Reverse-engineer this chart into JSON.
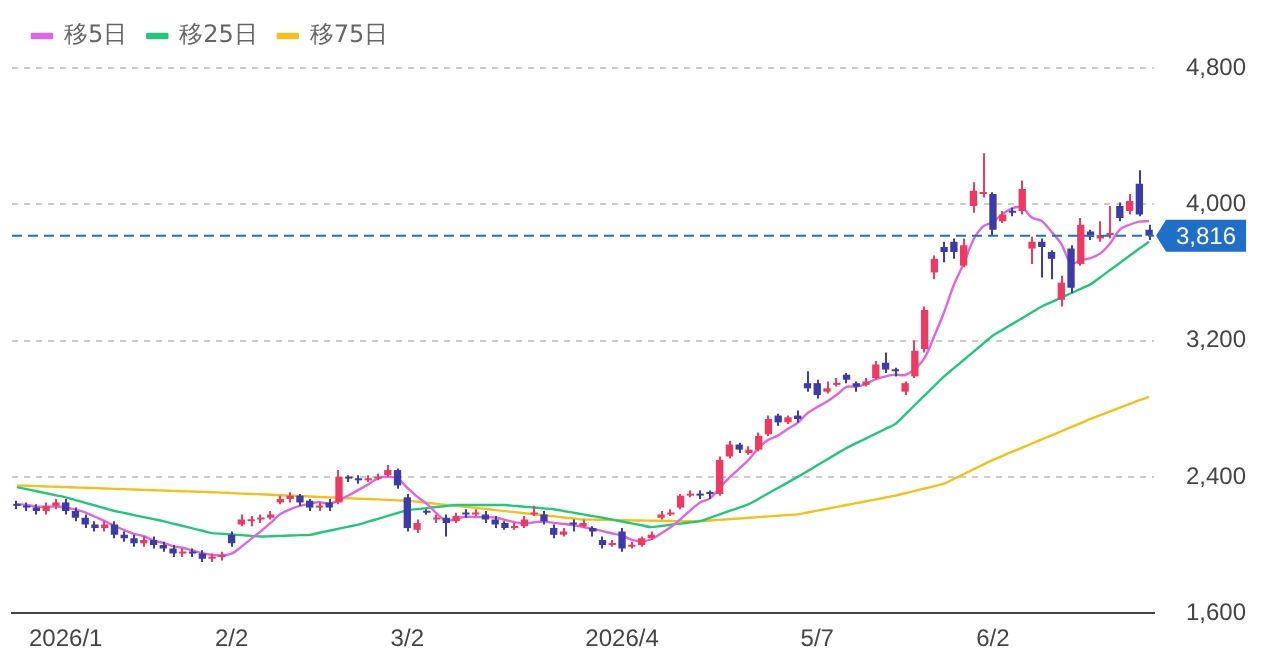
{
  "chart_data": {
    "type": "candlestick",
    "categories": [
      null,
      null,
      null,
      null,
      null,
      "2026/1",
      null,
      null,
      null,
      null,
      null,
      null,
      null,
      null,
      null,
      null,
      null,
      null,
      null,
      null,
      null,
      null,
      "2/2",
      null,
      null,
      null,
      null,
      null,
      null,
      null,
      null,
      null,
      null,
      null,
      null,
      null,
      null,
      null,
      null,
      null,
      "3/2",
      null,
      null,
      null,
      null,
      null,
      null,
      null,
      null,
      null,
      null,
      null,
      null,
      null,
      null,
      null,
      null,
      null,
      null,
      null,
      null,
      null,
      "2026/4",
      null,
      null,
      null,
      null,
      null,
      null,
      null,
      null,
      null,
      null,
      null,
      null,
      null,
      null,
      null,
      null,
      null,
      null,
      null,
      "5/7",
      null,
      null,
      null,
      null,
      null,
      null,
      null,
      null,
      null,
      null,
      null,
      null,
      null,
      null,
      null,
      null,
      null,
      "6/2",
      null,
      null,
      null,
      null,
      null,
      null,
      null,
      null,
      null,
      null,
      null,
      null,
      null,
      null,
      null,
      null
    ],
    "ohlc": [
      [
        2240,
        2260,
        2210,
        2230
      ],
      [
        2230,
        2250,
        2200,
        2220
      ],
      [
        2220,
        2240,
        2180,
        2200
      ],
      [
        2200,
        2250,
        2180,
        2230
      ],
      [
        2230,
        2270,
        2210,
        2250
      ],
      [
        2250,
        2270,
        2180,
        2200
      ],
      [
        2200,
        2220,
        2140,
        2160
      ],
      [
        2160,
        2180,
        2100,
        2120
      ],
      [
        2120,
        2140,
        2080,
        2100
      ],
      [
        2100,
        2140,
        2080,
        2120
      ],
      [
        2120,
        2140,
        2040,
        2060
      ],
      [
        2060,
        2080,
        2020,
        2040
      ],
      [
        2040,
        2060,
        1990,
        2010
      ],
      [
        2010,
        2050,
        1990,
        2030
      ],
      [
        2030,
        2050,
        1980,
        2000
      ],
      [
        2000,
        2020,
        1960,
        1980
      ],
      [
        1980,
        2000,
        1930,
        1950
      ],
      [
        1950,
        1980,
        1930,
        1960
      ],
      [
        1960,
        1980,
        1930,
        1950
      ],
      [
        1950,
        1970,
        1900,
        1920
      ],
      [
        1920,
        1950,
        1900,
        1930
      ],
      [
        1930,
        1960,
        1910,
        1940
      ],
      [
        2060,
        2080,
        1990,
        2010
      ],
      [
        2120,
        2180,
        2110,
        2150
      ],
      [
        2140,
        2170,
        2110,
        2150
      ],
      [
        2150,
        2180,
        2130,
        2160
      ],
      [
        2160,
        2200,
        2150,
        2180
      ],
      [
        2250,
        2290,
        2240,
        2270
      ],
      [
        2270,
        2310,
        2250,
        2290
      ],
      [
        2290,
        2300,
        2230,
        2250
      ],
      [
        2260,
        2270,
        2200,
        2220
      ],
      [
        2220,
        2250,
        2200,
        2230
      ],
      [
        2250,
        2270,
        2200,
        2220
      ],
      [
        2250,
        2440,
        2240,
        2400
      ],
      [
        2400,
        2410,
        2370,
        2390
      ],
      [
        2390,
        2410,
        2360,
        2380
      ],
      [
        2380,
        2410,
        2370,
        2390
      ],
      [
        2390,
        2420,
        2380,
        2400
      ],
      [
        2410,
        2470,
        2400,
        2440
      ],
      [
        2440,
        2450,
        2330,
        2350
      ],
      [
        2280,
        2300,
        2080,
        2100
      ],
      [
        2090,
        2150,
        2070,
        2130
      ],
      [
        2200,
        2210,
        2180,
        2190
      ],
      [
        2150,
        2180,
        2130,
        2160
      ],
      [
        2160,
        2180,
        2050,
        2130
      ],
      [
        2140,
        2190,
        2130,
        2170
      ],
      [
        2190,
        2210,
        2160,
        2180
      ],
      [
        2180,
        2210,
        2170,
        2190
      ],
      [
        2180,
        2200,
        2130,
        2150
      ],
      [
        2150,
        2170,
        2100,
        2120
      ],
      [
        2130,
        2140,
        2090,
        2100
      ],
      [
        2100,
        2130,
        2090,
        2110
      ],
      [
        2110,
        2170,
        2100,
        2150
      ],
      [
        2180,
        2230,
        2170,
        2190
      ],
      [
        2180,
        2200,
        2120,
        2140
      ],
      [
        2100,
        2120,
        2040,
        2060
      ],
      [
        2060,
        2100,
        2050,
        2080
      ],
      [
        2130,
        2150,
        2080,
        2120
      ],
      [
        2110,
        2150,
        2100,
        2130
      ],
      [
        2100,
        2110,
        2050,
        2080
      ],
      [
        2030,
        2050,
        1980,
        2000
      ],
      [
        2000,
        2030,
        1990,
        2010
      ],
      [
        2080,
        2100,
        1960,
        1980
      ],
      [
        1990,
        2020,
        1980,
        2000
      ],
      [
        2000,
        2050,
        1990,
        2040
      ],
      [
        2040,
        2080,
        2030,
        2060
      ],
      [
        2160,
        2200,
        2150,
        2180
      ],
      [
        2180,
        2210,
        2170,
        2190
      ],
      [
        2220,
        2300,
        2210,
        2290
      ],
      [
        2290,
        2320,
        2280,
        2300
      ],
      [
        2300,
        2320,
        2270,
        2290
      ],
      [
        2310,
        2320,
        2270,
        2300
      ],
      [
        2300,
        2520,
        2290,
        2500
      ],
      [
        2520,
        2610,
        2510,
        2590
      ],
      [
        2590,
        2600,
        2540,
        2560
      ],
      [
        2540,
        2580,
        2530,
        2560
      ],
      [
        2560,
        2660,
        2550,
        2640
      ],
      [
        2650,
        2760,
        2640,
        2740
      ],
      [
        2760,
        2770,
        2700,
        2720
      ],
      [
        2720,
        2760,
        2710,
        2750
      ],
      [
        2760,
        2790,
        2720,
        2740
      ],
      [
        2950,
        3020,
        2900,
        2920
      ],
      [
        2950,
        2970,
        2860,
        2880
      ],
      [
        2900,
        2960,
        2890,
        2920
      ],
      [
        2940,
        2980,
        2930,
        2950
      ],
      [
        3000,
        3010,
        2950,
        2970
      ],
      [
        2950,
        2960,
        2900,
        2930
      ],
      [
        2940,
        2980,
        2930,
        2960
      ],
      [
        2980,
        3080,
        2970,
        3060
      ],
      [
        3070,
        3130,
        3010,
        3030
      ],
      [
        3030,
        3040,
        2990,
        3020
      ],
      [
        2900,
        2960,
        2880,
        2950
      ],
      [
        2990,
        3200,
        2980,
        3140
      ],
      [
        3150,
        3400,
        3130,
        3380
      ],
      [
        3600,
        3700,
        3560,
        3680
      ],
      [
        3750,
        3780,
        3660,
        3720
      ],
      [
        3780,
        3800,
        3680,
        3720
      ],
      [
        3640,
        3800,
        3630,
        3760
      ],
      [
        3990,
        4130,
        3950,
        4080
      ],
      [
        4060,
        4300,
        4040,
        4070
      ],
      [
        4060,
        4070,
        3820,
        3850
      ],
      [
        3900,
        3960,
        3890,
        3940
      ],
      [
        3960,
        3980,
        3930,
        3950
      ],
      [
        3960,
        4140,
        3940,
        4090
      ],
      [
        3740,
        3810,
        3650,
        3780
      ],
      [
        3780,
        3800,
        3570,
        3750
      ],
      [
        3720,
        3730,
        3560,
        3680
      ],
      [
        3440,
        3580,
        3400,
        3540
      ],
      [
        3740,
        3760,
        3480,
        3510
      ],
      [
        3650,
        3920,
        3640,
        3880
      ],
      [
        3840,
        3850,
        3790,
        3810
      ],
      [
        3800,
        3900,
        3780,
        3820
      ],
      [
        3820,
        3990,
        3800,
        3830
      ],
      [
        3990,
        4010,
        3900,
        3920
      ],
      [
        3960,
        4060,
        3940,
        4020
      ],
      [
        4120,
        4200,
        3930,
        3940
      ],
      [
        3850,
        3880,
        3790,
        3816
      ]
    ],
    "colors": [
      "#3c3ca8",
      "#3c3ca8",
      "#3c3ca8",
      "#ee3a62",
      "#ee3a62",
      "#3c3ca8",
      "#3c3ca8",
      "#3c3ca8",
      "#3c3ca8",
      "#ee3a62",
      "#3c3ca8",
      "#3c3ca8",
      "#3c3ca8",
      "#ee3a62",
      "#3c3ca8",
      "#3c3ca8",
      "#3c3ca8",
      "#ee3a62",
      "#3c3ca8",
      "#3c3ca8",
      "#ee3a62",
      "#ee3a62",
      "#3c3ca8",
      "#ee3a62",
      "#ee3a62",
      "#ee3a62",
      "#ee3a62",
      "#ee3a62",
      "#ee3a62",
      "#3c3ca8",
      "#3c3ca8",
      "#ee3a62",
      "#3c3ca8",
      "#ee3a62",
      "#3c3ca8",
      "#3c3ca8",
      "#ee3a62",
      "#ee3a62",
      "#ee3a62",
      "#3c3ca8",
      "#3c3ca8",
      "#ee3a62",
      "#3c3ca8",
      "#ee3a62",
      "#3c3ca8",
      "#ee3a62",
      "#3c3ca8",
      "#ee3a62",
      "#3c3ca8",
      "#3c3ca8",
      "#3c3ca8",
      "#ee3a62",
      "#ee3a62",
      "#ee3a62",
      "#3c3ca8",
      "#3c3ca8",
      "#ee3a62",
      "#3c3ca8",
      "#ee3a62",
      "#3c3ca8",
      "#3c3ca8",
      "#ee3a62",
      "#3c3ca8",
      "#ee3a62",
      "#ee3a62",
      "#ee3a62",
      "#ee3a62",
      "#ee3a62",
      "#ee3a62",
      "#ee3a62",
      "#3c3ca8",
      "#3c3ca8",
      "#ee3a62",
      "#ee3a62",
      "#3c3ca8",
      "#ee3a62",
      "#ee3a62",
      "#ee3a62",
      "#3c3ca8",
      "#ee3a62",
      "#3c3ca8",
      "#3c3ca8",
      "#3c3ca8",
      "#ee3a62",
      "#ee3a62",
      "#3c3ca8",
      "#3c3ca8",
      "#ee3a62",
      "#ee3a62",
      "#3c3ca8",
      "#3c3ca8",
      "#ee3a62",
      "#ee3a62",
      "#ee3a62",
      "#ee3a62",
      "#3c3ca8",
      "#3c3ca8",
      "#ee3a62",
      "#ee3a62",
      "#ee3a62",
      "#3c3ca8",
      "#ee3a62",
      "#3c3ca8",
      "#ee3a62",
      "#ee3a62",
      "#3c3ca8",
      "#3c3ca8",
      "#ee3a62",
      "#3c3ca8",
      "#ee3a62",
      "#3c3ca8",
      "#ee3a62",
      "#ee3a62",
      "#3c3ca8",
      "#ee3a62",
      "#3c3ca8",
      "#3c3ca8"
    ],
    "series": [
      {
        "name": "移5日",
        "type": "line",
        "color": "#e066e0",
        "values": [
          2240,
          2235,
          2225,
          2225,
          2226,
          2220,
          2208,
          2192,
          2166,
          2140,
          2112,
          2088,
          2066,
          2052,
          2028,
          2012,
          1994,
          1984,
          1968,
          1952,
          1942,
          1940,
          1950,
          1990,
          2036,
          2082,
          2130,
          2182,
          2210,
          2230,
          2242,
          2252,
          2242,
          2264,
          2292,
          2324,
          2356,
          2392,
          2400,
          2392,
          2336,
          2284,
          2242,
          2186,
          2142,
          2156,
          2166,
          2164,
          2164,
          2162,
          2148,
          2134,
          2126,
          2134,
          2138,
          2130,
          2124,
          2118,
          2106,
          2094,
          2082,
          2068,
          2056,
          2030,
          2022,
          2034,
          2068,
          2106,
          2152,
          2204,
          2250,
          2274,
          2336,
          2396,
          2448,
          2502,
          2570,
          2618,
          2644,
          2682,
          2718,
          2774,
          2810,
          2842,
          2882,
          2928,
          2930,
          2946,
          2974,
          2990,
          3000,
          2998,
          3034,
          3098,
          3228,
          3368,
          3528,
          3652,
          3792,
          3870,
          3896,
          3944,
          3978,
          3980,
          3922,
          3902,
          3838,
          3768,
          3652,
          3672,
          3684,
          3712,
          3770,
          3852,
          3880,
          3898,
          3901
        ]
      },
      {
        "name": "移25日",
        "type": "line",
        "color": "#22c87a",
        "values": [
          2340,
          2328,
          2316,
          2304,
          2292,
          2280,
          2264,
          2248,
          2232,
          2216,
          2200,
          2188,
          2176,
          2164,
          2152,
          2140,
          2126,
          2112,
          2098,
          2084,
          2070,
          2066,
          2062,
          2058,
          2054,
          2050,
          2052,
          2054,
          2056,
          2058,
          2060,
          2072,
          2084,
          2096,
          2108,
          2120,
          2137,
          2154,
          2171,
          2188,
          2205,
          2211,
          2217,
          2223,
          2229,
          2235,
          2235,
          2235,
          2235,
          2235,
          2235,
          2230,
          2225,
          2220,
          2215,
          2210,
          2200,
          2190,
          2180,
          2170,
          2160,
          2149,
          2138,
          2127,
          2116,
          2105,
          2112,
          2119,
          2126,
          2133,
          2140,
          2160,
          2180,
          2200,
          2220,
          2240,
          2272,
          2304,
          2336,
          2368,
          2400,
          2434,
          2468,
          2502,
          2536,
          2570,
          2598,
          2626,
          2654,
          2682,
          2710,
          2766,
          2822,
          2878,
          2934,
          2990,
          3038,
          3086,
          3134,
          3182,
          3230,
          3264,
          3298,
          3332,
          3366,
          3400,
          3426,
          3452,
          3478,
          3504,
          3530,
          3572,
          3614,
          3656,
          3698,
          3740,
          3780
        ]
      },
      {
        "name": "移75日",
        "type": "line",
        "color": "#f2c21b",
        "values": [
          2350,
          2348,
          2346,
          2344,
          2342,
          2340,
          2338,
          2336,
          2334,
          2332,
          2330,
          2328,
          2326,
          2324,
          2322,
          2320,
          2318,
          2316,
          2314,
          2312,
          2310,
          2308,
          2305,
          2302,
          2300,
          2298,
          2295,
          2292,
          2290,
          2288,
          2285,
          2282,
          2280,
          2278,
          2275,
          2272,
          2270,
          2268,
          2265,
          2262,
          2260,
          2254,
          2248,
          2242,
          2236,
          2230,
          2224,
          2218,
          2212,
          2205,
          2199,
          2193,
          2187,
          2181,
          2175,
          2169,
          2162,
          2156,
          2150,
          2149,
          2148,
          2147,
          2146,
          2145,
          2144,
          2143,
          2142,
          2141,
          2140,
          2140,
          2140,
          2144,
          2148,
          2152,
          2156,
          2160,
          2164,
          2168,
          2172,
          2176,
          2180,
          2191,
          2202,
          2213,
          2224,
          2235,
          2246,
          2257,
          2268,
          2279,
          2290,
          2304,
          2318,
          2332,
          2346,
          2360,
          2388,
          2416,
          2444,
          2472,
          2500,
          2524,
          2548,
          2572,
          2596,
          2620,
          2644,
          2668,
          2692,
          2716,
          2740,
          2762,
          2784,
          2806,
          2828,
          2850,
          2870
        ]
      }
    ],
    "ylim": [
      1600,
      4800
    ],
    "yticks": [
      {
        "value": 1600,
        "label": "1,600"
      },
      {
        "value": 2400,
        "label": "2,400"
      },
      {
        "value": 3200,
        "label": "3,200"
      },
      {
        "value": 4000,
        "label": "4,000"
      },
      {
        "value": 4800,
        "label": "4,800"
      }
    ],
    "ref_lines": [
      {
        "axis": "y",
        "value": 3816,
        "label": "3,816",
        "color": "#1f6fc8",
        "line_style": "dashed"
      }
    ],
    "grid": "y",
    "legend": "top left",
    "marker": "none",
    "line_style": "solid"
  }
}
